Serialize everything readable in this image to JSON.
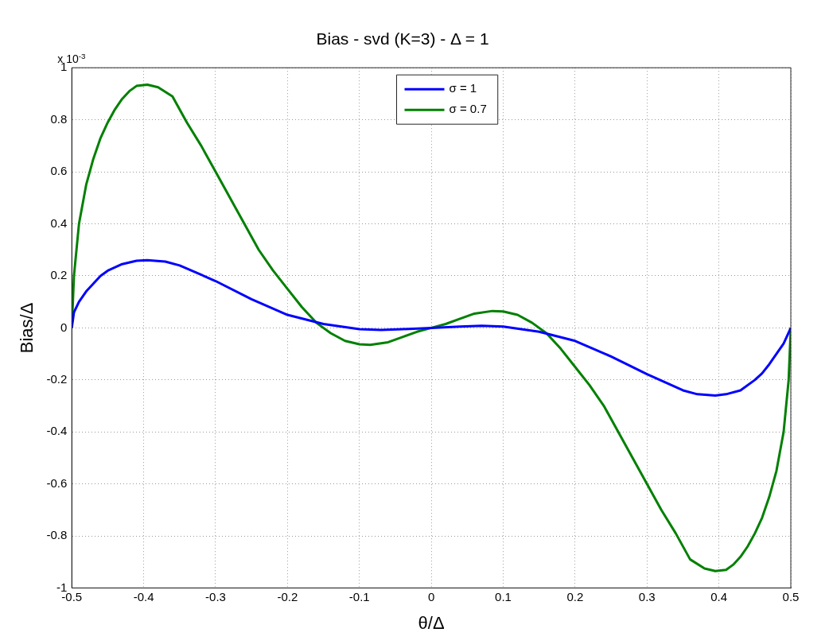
{
  "chart_data": {
    "type": "line",
    "title": "Bias - svd (K=3) - Δ = 1",
    "xlabel": "θ/Δ",
    "ylabel": "Bias/Δ",
    "annotations": [
      "x 10$^{-3}$"
    ],
    "xlim": [
      -0.5,
      0.5
    ],
    "xticks": [
      -0.5,
      -0.4,
      -0.3,
      -0.2,
      -0.1,
      0,
      0.1,
      0.2,
      0.3,
      0.4,
      0.5
    ],
    "ylim": [
      -1,
      1
    ],
    "yticks": [
      -1,
      -0.8,
      -0.6,
      -0.4,
      -0.2,
      0,
      0.2,
      0.4,
      0.6,
      0.8,
      1
    ],
    "grid": true,
    "legend": "top",
    "line_style": "solid",
    "marker": "none",
    "series": [
      {
        "name": "σ = 1",
        "color": "#0000ff",
        "x": [
          -0.5,
          -0.497,
          -0.49,
          -0.48,
          -0.47,
          -0.46,
          -0.45,
          -0.43,
          -0.41,
          -0.395,
          -0.37,
          -0.35,
          -0.3,
          -0.25,
          -0.2,
          -0.15,
          -0.1,
          -0.07,
          -0.04,
          0,
          0.04,
          0.07,
          0.1,
          0.15,
          0.2,
          0.25,
          0.3,
          0.35,
          0.37,
          0.395,
          0.41,
          0.43,
          0.45,
          0.46,
          0.47,
          0.48,
          0.49,
          0.5
        ],
        "values": [
          0,
          0.06,
          0.1,
          0.14,
          0.17,
          0.2,
          0.22,
          0.245,
          0.258,
          0.26,
          0.255,
          0.24,
          0.18,
          0.11,
          0.05,
          0.015,
          -0.005,
          -0.008,
          -0.005,
          0,
          0.005,
          0.008,
          0.005,
          -0.015,
          -0.05,
          -0.11,
          -0.178,
          -0.24,
          -0.255,
          -0.26,
          -0.255,
          -0.24,
          -0.2,
          -0.175,
          -0.14,
          -0.1,
          -0.06,
          0
        ]
      },
      {
        "name": "σ = 0.7",
        "color": "#008000",
        "x": [
          -0.5,
          -0.497,
          -0.49,
          -0.48,
          -0.47,
          -0.46,
          -0.45,
          -0.44,
          -0.43,
          -0.42,
          -0.41,
          -0.395,
          -0.38,
          -0.36,
          -0.34,
          -0.32,
          -0.3,
          -0.28,
          -0.26,
          -0.24,
          -0.22,
          -0.2,
          -0.18,
          -0.16,
          -0.14,
          -0.12,
          -0.1,
          -0.085,
          -0.06,
          -0.04,
          -0.02,
          0,
          0.02,
          0.04,
          0.06,
          0.085,
          0.1,
          0.12,
          0.14,
          0.16,
          0.18,
          0.2,
          0.22,
          0.24,
          0.26,
          0.28,
          0.3,
          0.32,
          0.34,
          0.36,
          0.38,
          0.395,
          0.41,
          0.42,
          0.43,
          0.44,
          0.45,
          0.46,
          0.47,
          0.48,
          0.49,
          0.497,
          0.5
        ],
        "values": [
          0,
          0.2,
          0.4,
          0.55,
          0.65,
          0.73,
          0.79,
          0.84,
          0.88,
          0.91,
          0.93,
          0.935,
          0.925,
          0.89,
          0.79,
          0.7,
          0.6,
          0.5,
          0.4,
          0.3,
          0.22,
          0.15,
          0.08,
          0.02,
          -0.02,
          -0.05,
          -0.063,
          -0.065,
          -0.055,
          -0.035,
          -0.015,
          0,
          0.015,
          0.035,
          0.055,
          0.065,
          0.063,
          0.05,
          0.02,
          -0.02,
          -0.08,
          -0.15,
          -0.22,
          -0.3,
          -0.4,
          -0.5,
          -0.6,
          -0.7,
          -0.79,
          -0.89,
          -0.925,
          -0.935,
          -0.93,
          -0.91,
          -0.88,
          -0.84,
          -0.79,
          -0.73,
          -0.65,
          -0.55,
          -0.4,
          -0.2,
          0
        ]
      }
    ]
  }
}
